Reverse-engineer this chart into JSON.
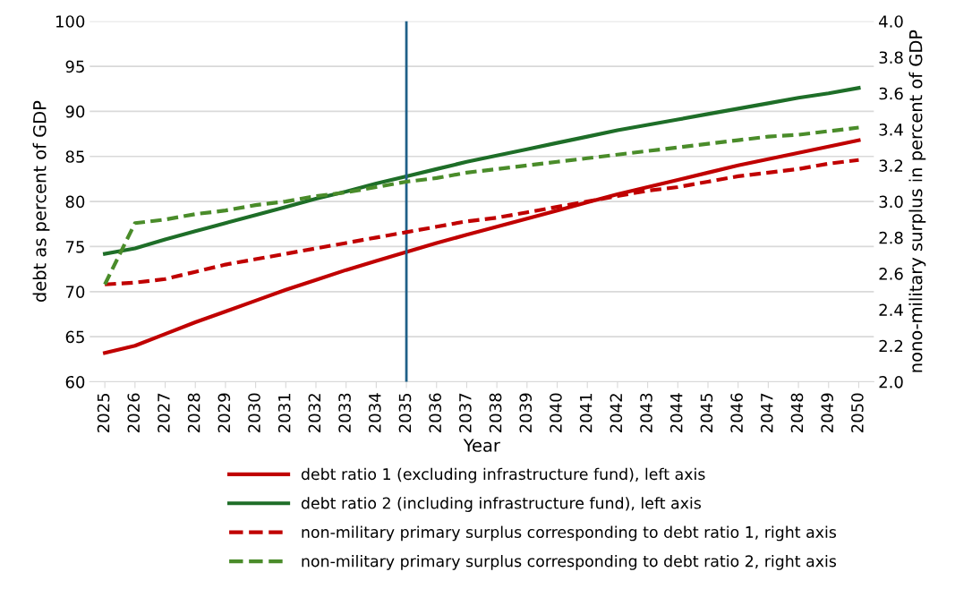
{
  "chart_data": {
    "type": "line",
    "xlabel": "Year",
    "ylabel": "debt as percent of GDP",
    "y2label": "nono-military surplus in percent of GDP",
    "x": [
      2025,
      2026,
      2027,
      2028,
      2029,
      2030,
      2031,
      2032,
      2033,
      2034,
      2035,
      2036,
      2037,
      2038,
      2039,
      2040,
      2041,
      2042,
      2043,
      2044,
      2045,
      2046,
      2047,
      2048,
      2049,
      2050
    ],
    "xlim": [
      2024.5,
      2050.5
    ],
    "xticks": [
      2025,
      2026,
      2027,
      2028,
      2029,
      2030,
      2031,
      2032,
      2033,
      2034,
      2035,
      2036,
      2037,
      2038,
      2039,
      2040,
      2041,
      2042,
      2043,
      2044,
      2045,
      2046,
      2047,
      2048,
      2049,
      2050
    ],
    "ylim": [
      60,
      100
    ],
    "yticks": [
      60,
      65,
      70,
      75,
      80,
      85,
      90,
      95,
      100
    ],
    "y2lim": [
      2.0,
      4.0
    ],
    "y2ticks": [
      {
        "value": 2.0,
        "label": "2.0"
      },
      {
        "value": 2.2,
        "label": "2.2"
      },
      {
        "value": 2.4,
        "label": "2.4"
      },
      {
        "value": 2.6,
        "label": "2.6"
      },
      {
        "value": 2.8,
        "label": "2.8"
      },
      {
        "value": 3.0,
        "label": "3.0"
      },
      {
        "value": 3.2,
        "label": "3.2"
      },
      {
        "value": 3.4,
        "label": "3.4"
      },
      {
        "value": 3.6,
        "label": "3.6"
      },
      {
        "value": 3.8,
        "label": "3.8"
      },
      {
        "value": 4.0,
        "label": "4.0"
      }
    ],
    "grid": "y",
    "legend": "bottom",
    "marker": "none",
    "series": [
      {
        "name": "debt ratio 1 (excluding infrastructure fund), left axis",
        "color": "#c00000",
        "line_style": "solid",
        "values": [
          63.2,
          64.0,
          65.3,
          66.6,
          67.8,
          69.0,
          70.2,
          71.3,
          72.4,
          73.4,
          74.4,
          75.4,
          76.3,
          77.2,
          78.1,
          79.0,
          79.9,
          80.8,
          81.6,
          82.4,
          83.2,
          84.0,
          84.7,
          85.4,
          86.1,
          86.8
        ]
      },
      {
        "name": "debt ratio 2 (including infrastructure fund), left axis",
        "color": "#1e6e28",
        "line_style": "solid",
        "values": [
          74.2,
          74.8,
          75.8,
          76.7,
          77.6,
          78.5,
          79.4,
          80.3,
          81.1,
          82.0,
          82.8,
          83.6,
          84.4,
          85.1,
          85.8,
          86.5,
          87.2,
          87.9,
          88.5,
          89.1,
          89.7,
          90.3,
          90.9,
          91.5,
          92.0,
          92.6
        ]
      },
      {
        "name": "non-military primary surplus corresponding to debt ratio 1, right axis",
        "color": "#c00000",
        "line_style": "dashed",
        "axis": "y2",
        "values": [
          2.54,
          2.55,
          2.57,
          2.61,
          2.65,
          2.68,
          2.71,
          2.74,
          2.77,
          2.8,
          2.83,
          2.86,
          2.89,
          2.91,
          2.94,
          2.97,
          3.0,
          3.03,
          3.06,
          3.08,
          3.11,
          3.14,
          3.16,
          3.18,
          3.21,
          3.23
        ]
      },
      {
        "name": "non-military primary surplus corresponding to debt ratio 2, right axis",
        "color": "#4a8c2a",
        "line_style": "dashed",
        "axis": "y2",
        "values": [
          2.54,
          2.88,
          2.9,
          2.93,
          2.95,
          2.98,
          3.0,
          3.03,
          3.05,
          3.08,
          3.11,
          3.13,
          3.16,
          3.18,
          3.2,
          3.22,
          3.24,
          3.26,
          3.28,
          3.3,
          3.32,
          3.34,
          3.36,
          3.37,
          3.39,
          3.41
        ]
      }
    ],
    "ref_lines": [
      {
        "axis": "x",
        "value": 2035,
        "color": "#1f6088",
        "line_style": "solid"
      }
    ]
  }
}
